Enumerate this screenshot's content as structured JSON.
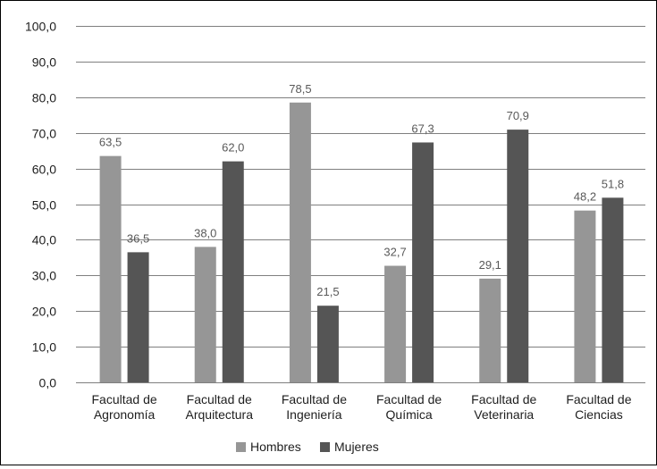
{
  "chart_data": {
    "type": "bar",
    "title": "",
    "xlabel": "",
    "ylabel": "",
    "categories": [
      [
        "Facultad de",
        "Agronomía"
      ],
      [
        "Facultad de",
        "Arquitectura"
      ],
      [
        "Facultad de",
        "Ingeniería"
      ],
      [
        "Facultad de",
        "Química"
      ],
      [
        "Facultad de",
        "Veterinaria"
      ],
      [
        "Facultad de",
        "Ciencias"
      ]
    ],
    "series": [
      {
        "name": "Hombres",
        "color": "#969696",
        "values": [
          63.5,
          38.0,
          78.5,
          32.7,
          29.1,
          48.2
        ],
        "labels": [
          "63,5",
          "38,0",
          "78,5",
          "32,7",
          "29,1",
          "48,2"
        ]
      },
      {
        "name": "Mujeres",
        "color": "#555555",
        "values": [
          36.5,
          62.0,
          21.5,
          67.3,
          70.9,
          51.8
        ],
        "labels": [
          "36,5",
          "62,0",
          "21,5",
          "67,3",
          "70,9",
          "51,8"
        ]
      }
    ],
    "ylim": [
      0,
      100
    ],
    "yticks": [
      "0,0",
      "10,0",
      "20,0",
      "30,0",
      "40,0",
      "50,0",
      "60,0",
      "70,0",
      "80,0",
      "90,0",
      "100,0"
    ],
    "grid": true,
    "legend_position": "bottom-center"
  }
}
